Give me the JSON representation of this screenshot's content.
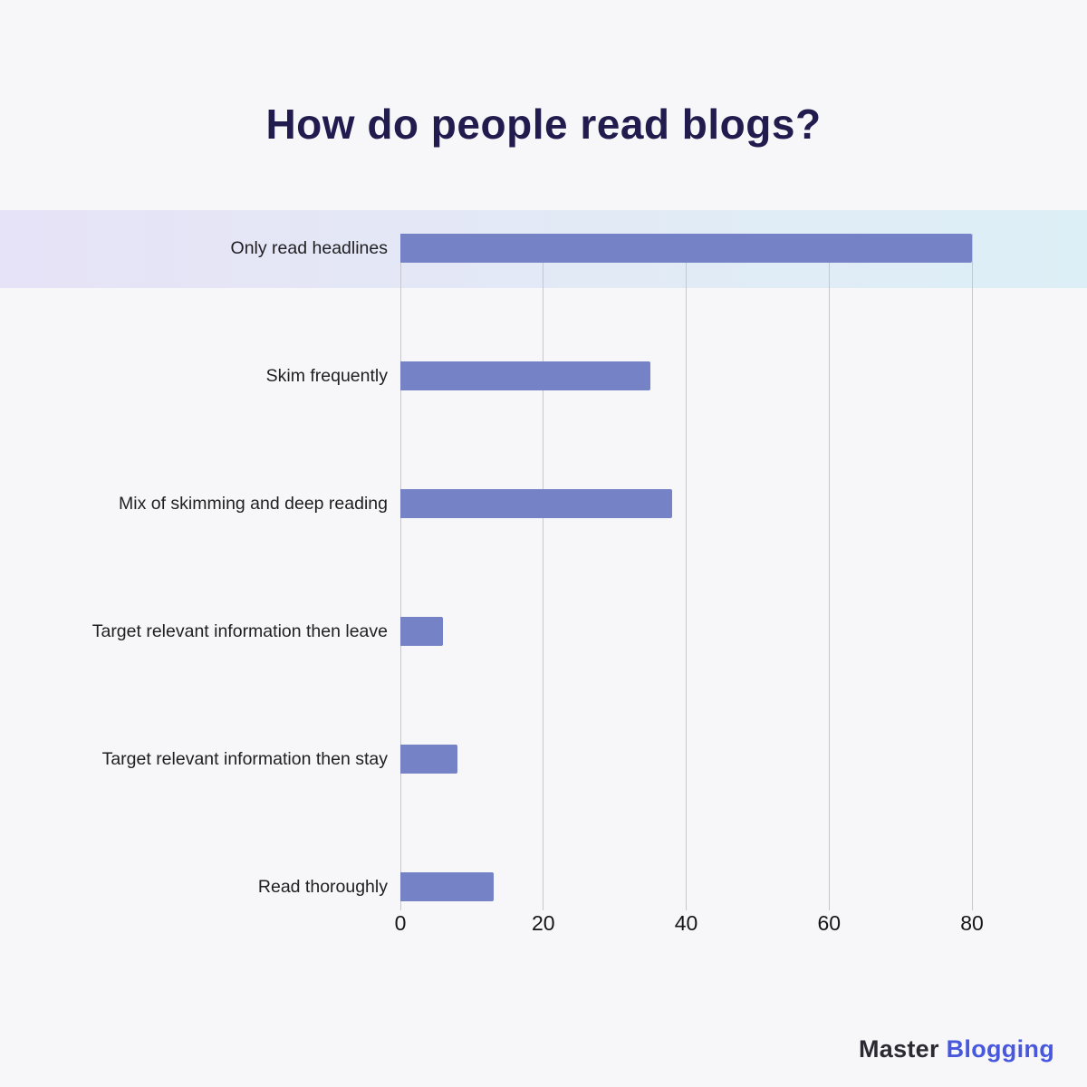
{
  "title": "How do people read blogs?",
  "brand": {
    "part1": "Master",
    "part2": "Blogging"
  },
  "colors": {
    "background": "#f7f7fa",
    "title": "#221b4e",
    "bar": "#7583c6",
    "band_left": "#e6e2f7",
    "band_right": "#ddeff6",
    "gridline": "#c6c6cc",
    "label": "#1f1f22",
    "brand_dark": "#2b2a33",
    "brand_accent": "#4758dc"
  },
  "chart_data": {
    "type": "bar",
    "orientation": "horizontal",
    "title": "How do people read blogs?",
    "categories": [
      "Only read headlines",
      "Skim frequently",
      "Mix of skimming and deep reading",
      "Target relevant information then leave",
      "Target relevant information then stay",
      "Read thoroughly"
    ],
    "values": [
      80,
      35,
      38,
      6,
      8,
      13
    ],
    "x_ticks": [
      "0",
      "20",
      "40",
      "60",
      "80"
    ],
    "xlim": [
      0,
      87
    ],
    "xlabel": "",
    "ylabel": "",
    "grid": "vertical",
    "legend": "none",
    "highlighted_category": "Only read headlines"
  }
}
